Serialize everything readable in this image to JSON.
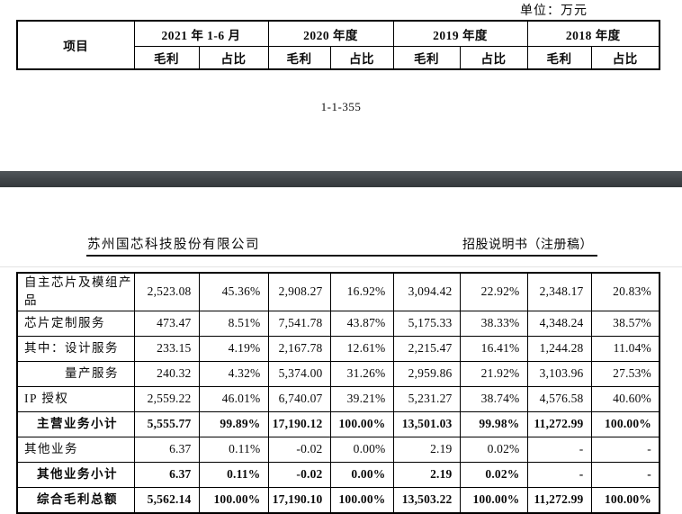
{
  "document": {
    "unit_label": "单位：万元",
    "page_number": "1-1-355"
  },
  "page2_header": {
    "company_name": "苏州国芯科技股份有限公司",
    "doc_type": "招股说明书（注册稿）"
  },
  "header_table": {
    "item_label": "项目",
    "periods": [
      "2021 年 1-6 月",
      "2020 年度",
      "2019 年度",
      "2018 年度"
    ],
    "sub_headers": [
      "毛利",
      "占比"
    ]
  },
  "data_table": {
    "rows": [
      {
        "label": "自主芯片及模组产品",
        "type": "item",
        "bold": false,
        "values": [
          "2,523.08",
          "45.36%",
          "2,908.27",
          "16.92%",
          "3,094.42",
          "22.92%",
          "2,348.17",
          "20.83%"
        ]
      },
      {
        "label": "芯片定制服务",
        "type": "item",
        "bold": false,
        "values": [
          "473.47",
          "8.51%",
          "7,541.78",
          "43.87%",
          "5,175.33",
          "38.33%",
          "4,348.24",
          "38.57%"
        ]
      },
      {
        "label": "其中：设计服务",
        "type": "item",
        "bold": false,
        "values": [
          "233.15",
          "4.19%",
          "2,167.78",
          "12.61%",
          "2,215.47",
          "16.41%",
          "1,244.28",
          "11.04%"
        ]
      },
      {
        "label": "量产服务",
        "type": "sub-item",
        "bold": false,
        "values": [
          "240.32",
          "4.32%",
          "5,374.00",
          "31.26%",
          "2,959.86",
          "21.92%",
          "3,103.96",
          "27.53%"
        ]
      },
      {
        "label": "IP 授权",
        "type": "item",
        "bold": false,
        "values": [
          "2,559.22",
          "46.01%",
          "6,740.07",
          "39.21%",
          "5,231.27",
          "38.74%",
          "4,576.58",
          "40.60%"
        ]
      },
      {
        "label": "主营业务小计",
        "type": "subtotal",
        "bold": true,
        "values": [
          "5,555.77",
          "99.89%",
          "17,190.12",
          "100.00%",
          "13,501.03",
          "99.98%",
          "11,272.99",
          "100.00%"
        ]
      },
      {
        "label": "其他业务",
        "type": "item",
        "bold": false,
        "values": [
          "6.37",
          "0.11%",
          "-0.02",
          "0.00%",
          "2.19",
          "0.02%",
          "-",
          "-"
        ]
      },
      {
        "label": "其他业务小计",
        "type": "subtotal",
        "bold": true,
        "values": [
          "6.37",
          "0.11%",
          "-0.02",
          "0.00%",
          "2.19",
          "0.02%",
          "-",
          "-"
        ]
      },
      {
        "label": "综合毛利总额",
        "type": "subtotal",
        "bold": true,
        "values": [
          "5,562.14",
          "100.00%",
          "17,190.10",
          "100.00%",
          "13,503.22",
          "100.00%",
          "11,272.99",
          "100.00%"
        ]
      }
    ]
  }
}
